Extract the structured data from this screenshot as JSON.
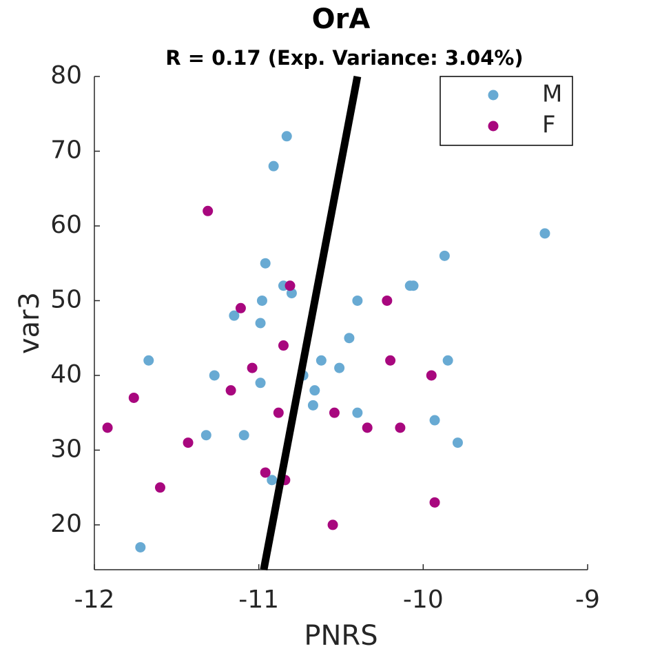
{
  "chart_data": {
    "type": "scatter",
    "title": "OrA",
    "subtitle": "R = 0.17 (Exp. Variance: 3.04%)",
    "x_label": "PNRS",
    "y_label": "var3",
    "xlim": [
      -12,
      -9
    ],
    "xticks": [
      -12,
      -11,
      -10,
      -9
    ],
    "ylim": [
      14,
      80
    ],
    "yticks": [
      20,
      30,
      40,
      50,
      60,
      70,
      80
    ],
    "grid": false,
    "legend_position": "top-right",
    "series": [
      {
        "name": "M",
        "color": "#68aad3",
        "x": [
          -10.83,
          -10.91,
          -9.26,
          -9.87,
          -10.96,
          -10.85,
          -10.8,
          -10.08,
          -10.06,
          -10.98,
          -10.4,
          -11.15,
          -10.99,
          -10.45,
          -11.67,
          -10.62,
          -9.85,
          -10.51,
          -11.27,
          -10.73,
          -10.99,
          -10.66,
          -10.67,
          -10.4,
          -9.93,
          -11.32,
          -11.09,
          -9.79,
          -10.92,
          -11.72
        ],
        "values": [
          72,
          68,
          59,
          56,
          55,
          52,
          51,
          52,
          52,
          50,
          50,
          48,
          47,
          45,
          42,
          42,
          42,
          41,
          40,
          40,
          39,
          38,
          36,
          35,
          34,
          32,
          32,
          31,
          26,
          17
        ]
      },
      {
        "name": "F",
        "color": "#a8077e",
        "x": [
          -11.31,
          -10.81,
          -11.11,
          -10.22,
          -10.85,
          -11.04,
          -10.2,
          -9.95,
          -11.17,
          -11.76,
          -10.88,
          -10.54,
          -10.34,
          -10.14,
          -11.92,
          -11.43,
          -10.96,
          -10.84,
          -11.6,
          -9.93,
          -10.55
        ],
        "values": [
          62,
          52,
          49,
          50,
          44,
          41,
          42,
          40,
          38,
          37,
          35,
          35,
          33,
          33,
          33,
          31,
          27,
          26,
          25,
          23,
          20
        ]
      }
    ],
    "fit_line": {
      "color": "#000000",
      "x": [
        -10.97,
        -10.4
      ],
      "y": [
        14,
        80
      ]
    }
  }
}
